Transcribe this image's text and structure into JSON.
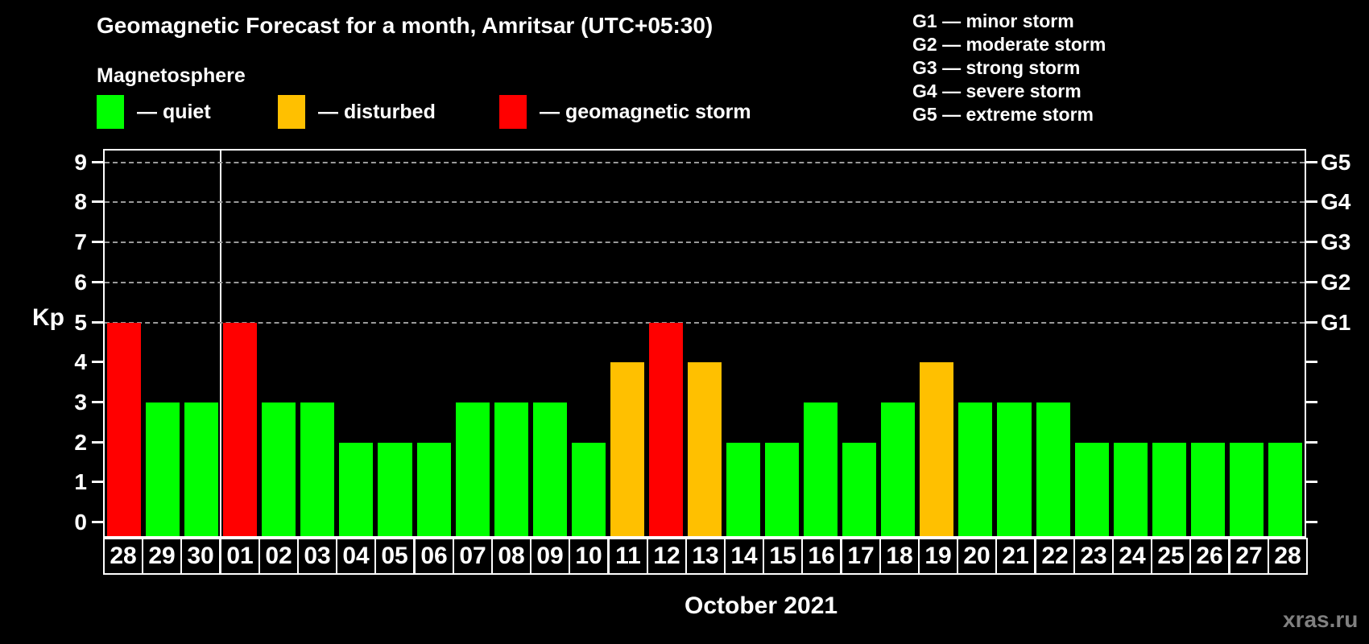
{
  "title": "Geomagnetic Forecast for a month, Amritsar (UTC+05:30)",
  "subtitle": "Magnetosphere",
  "legend": {
    "items": [
      {
        "key": "quiet",
        "label": "— quiet",
        "color": "#00ff00"
      },
      {
        "key": "disturbed",
        "label": "— disturbed",
        "color": "#ffc000"
      },
      {
        "key": "storm",
        "label": "— geomagnetic storm",
        "color": "#ff0000"
      }
    ]
  },
  "g_scale_legend": {
    "lines": [
      "G1 — minor storm",
      "G2 — moderate storm",
      "G3 — strong storm",
      "G4 — severe storm",
      "G5 — extreme storm"
    ]
  },
  "watermark": "xras.ru",
  "chart_data": {
    "type": "bar",
    "title": "Geomagnetic Forecast for a month, Amritsar (UTC+05:30)",
    "subtitle": "Magnetosphere",
    "ylabel": "Kp",
    "xlabel": "October 2021",
    "ylim": [
      0,
      9
    ],
    "yticks": [
      0,
      1,
      2,
      3,
      4,
      5,
      6,
      7,
      8,
      9
    ],
    "gridlines_at": [
      5,
      6,
      7,
      8,
      9
    ],
    "grid": "dashed horizontal lines at Kp 5-9 only",
    "legend_position": "top",
    "right_axis_labels": [
      {
        "value": 5,
        "label": "G1"
      },
      {
        "value": 6,
        "label": "G2"
      },
      {
        "value": 7,
        "label": "G3"
      },
      {
        "value": 8,
        "label": "G4"
      },
      {
        "value": 9,
        "label": "G5"
      }
    ],
    "categories": [
      "28",
      "29",
      "30",
      "01",
      "02",
      "03",
      "04",
      "05",
      "06",
      "07",
      "08",
      "09",
      "10",
      "11",
      "12",
      "13",
      "14",
      "15",
      "16",
      "17",
      "18",
      "19",
      "20",
      "21",
      "22",
      "23",
      "24",
      "25",
      "26",
      "27",
      "28"
    ],
    "values": [
      5,
      3,
      3,
      5,
      3,
      3,
      2,
      2,
      2,
      3,
      3,
      3,
      2,
      4,
      5,
      4,
      2,
      2,
      3,
      2,
      3,
      4,
      3,
      3,
      3,
      2,
      2,
      2,
      2,
      2,
      2
    ],
    "month_separator_after_index": 2,
    "color_rule": {
      "storm_min_kp": 5,
      "disturbed_kp": 4,
      "quiet_max_kp": 3
    },
    "colors": {
      "quiet": "#00ff00",
      "disturbed": "#ffc000",
      "storm": "#ff0000",
      "grid": "#9a9a9a",
      "axis": "#ffffff",
      "watermark": "#808080"
    }
  }
}
